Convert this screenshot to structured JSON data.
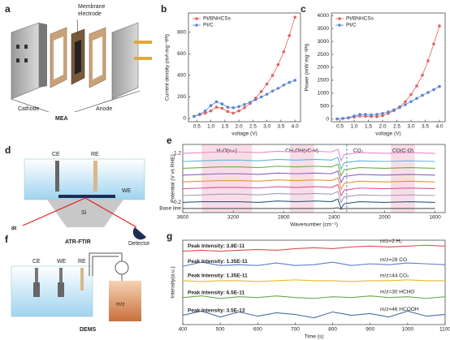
{
  "diagram_a": {
    "panel": "a",
    "membrane_label": [
      "Membrane",
      "electrode"
    ],
    "cathode": "Cathode",
    "anode": "Anode",
    "caption": "MEA"
  },
  "diagram_d": {
    "panel": "d",
    "ce": "CE",
    "re": "RE",
    "we": "WE",
    "si": "Si",
    "ir": "IR",
    "detector": "Detector",
    "caption": "ATR-FTIR"
  },
  "diagram_f": {
    "panel": "f",
    "ce": "CE",
    "we": "WE",
    "re": "RE",
    "mz": "m/z",
    "caption": "DEMS"
  },
  "chart_data": [
    {
      "type": "line",
      "panel": "b",
      "xlabel": "voltage (V)",
      "ylabel": "Current density (mA mg⁻¹Pt)",
      "x": [
        0.4,
        0.6,
        0.8,
        1.0,
        1.2,
        1.4,
        1.6,
        1.8,
        2.0,
        2.2,
        2.4,
        2.6,
        2.8,
        3.0,
        3.2,
        3.4,
        3.6,
        3.8,
        4.0
      ],
      "series": [
        {
          "name": "Pt/BNHCSs",
          "color": "#e2605e",
          "values": [
            20,
            35,
            50,
            70,
            105,
            95,
            65,
            50,
            70,
            100,
            140,
            190,
            250,
            320,
            400,
            500,
            620,
            770,
            940
          ]
        },
        {
          "name": "Pt/C",
          "color": "#5a84d4",
          "values": [
            20,
            40,
            70,
            120,
            155,
            135,
            105,
            100,
            110,
            130,
            150,
            175,
            200,
            225,
            255,
            280,
            310,
            335,
            355
          ]
        }
      ],
      "xlim": [
        0.2,
        4.2
      ],
      "xticks": [
        0.5,
        {
          "value": 1,
          "label": "1.0"
        },
        1.5,
        {
          "value": 2,
          "label": "2.0"
        },
        2.5,
        {
          "value": 3,
          "label": "3.0"
        },
        3.5,
        {
          "value": 4,
          "label": "4.0"
        }
      ],
      "ylim": [
        -30,
        980
      ],
      "yticks": [
        0,
        200,
        400,
        600,
        800
      ],
      "legend": "upper left",
      "markers": true
    },
    {
      "type": "line",
      "panel": "c",
      "xlabel": "voltage (V)",
      "ylabel": "Power (mW mg⁻¹Pt)",
      "x": [
        0.4,
        0.6,
        0.8,
        1.0,
        1.2,
        1.4,
        1.6,
        1.8,
        2.0,
        2.2,
        2.4,
        2.6,
        2.8,
        3.0,
        3.2,
        3.4,
        3.6,
        3.8,
        4.0
      ],
      "series": [
        {
          "name": "Pt/BNHCSs",
          "color": "#e2605e",
          "values": [
            10,
            25,
            50,
            80,
            120,
            110,
            100,
            95,
            140,
            220,
            330,
            480,
            680,
            950,
            1280,
            1700,
            2250,
            2900,
            3600
          ]
        },
        {
          "name": "Pt/C",
          "color": "#5a84d4",
          "values": [
            10,
            25,
            55,
            120,
            180,
            180,
            160,
            180,
            220,
            280,
            360,
            450,
            560,
            680,
            800,
            920,
            1030,
            1140,
            1260
          ]
        }
      ],
      "xlim": [
        0.2,
        4.2
      ],
      "xticks": [
        0.5,
        {
          "value": 1,
          "label": "1.0"
        },
        1.5,
        {
          "value": 2,
          "label": "2.0"
        },
        2.5,
        {
          "value": 3,
          "label": "3.0"
        },
        3.5,
        {
          "value": 4,
          "label": "4.0"
        }
      ],
      "ylim": [
        -100,
        4100
      ],
      "yticks": [
        0,
        500,
        1000,
        1500,
        2000,
        2500,
        3000,
        3500,
        4000
      ],
      "legend": "upper left",
      "markers": true
    },
    {
      "type": "line",
      "panel": "e",
      "xlabel": "Wavenumber (cm⁻¹)",
      "ylabel": "Potential (V vs RHE)",
      "x": [
        3600,
        3450,
        3300,
        3150,
        3000,
        2850,
        2700,
        2550,
        2420,
        2370,
        2345,
        2320,
        2200,
        2000,
        1800,
        1600
      ],
      "series": [
        {
          "name": "Base line",
          "color": "#555555",
          "values": [
            0.6,
            0.6,
            0.6,
            0.6,
            0.6,
            0.6,
            0.6,
            0.6,
            0.6,
            0.7,
            0.5,
            0.6,
            0.6,
            0.6,
            0.6,
            0.6
          ]
        },
        {
          "name": "0.2",
          "color": "#2e5e7a",
          "values": [
            1.5,
            1.6,
            1.6,
            1.6,
            1.5,
            1.7,
            1.6,
            1.7,
            1.6,
            2.0,
            0.6,
            1.3,
            1.6,
            1.5,
            1.6,
            1.5
          ]
        },
        {
          "color": "#a89bb5",
          "values": [
            2.5,
            2.6,
            2.7,
            2.7,
            2.6,
            2.8,
            2.7,
            2.8,
            2.7,
            3.1,
            1.5,
            2.3,
            2.6,
            2.5,
            2.6,
            2.5
          ]
        },
        {
          "color": "#d8569a",
          "values": [
            3.5,
            3.6,
            3.7,
            3.7,
            3.6,
            3.8,
            3.7,
            3.8,
            3.7,
            4.1,
            2.5,
            3.3,
            3.6,
            3.5,
            3.6,
            3.5
          ]
        },
        {
          "color": "#e8913a",
          "values": [
            4.5,
            4.6,
            4.7,
            4.7,
            4.6,
            4.8,
            4.7,
            4.8,
            4.7,
            5.1,
            3.4,
            4.3,
            4.6,
            4.5,
            4.6,
            4.5
          ]
        },
        {
          "color": "#8e5fc2",
          "values": [
            5.5,
            5.6,
            5.7,
            5.7,
            5.6,
            5.8,
            5.7,
            5.8,
            5.7,
            6.1,
            4.4,
            5.3,
            5.6,
            5.5,
            5.6,
            5.5
          ]
        },
        {
          "color": "#6cae45",
          "values": [
            6.5,
            6.6,
            6.7,
            6.7,
            6.6,
            6.8,
            6.7,
            6.8,
            6.7,
            7.1,
            5.4,
            6.3,
            6.6,
            6.5,
            6.6,
            6.5
          ]
        },
        {
          "color": "#5fb6d8",
          "values": [
            7.5,
            7.6,
            7.7,
            7.7,
            7.6,
            7.8,
            7.7,
            7.8,
            7.7,
            8.1,
            6.4,
            7.3,
            7.6,
            7.5,
            7.6,
            7.5
          ]
        },
        {
          "name": "1.2",
          "color": "#e78bd0",
          "values": [
            8.7,
            8.8,
            8.9,
            8.9,
            8.8,
            9.0,
            8.9,
            9.0,
            8.9,
            9.3,
            7.6,
            8.5,
            8.8,
            8.7,
            8.8,
            8.7
          ]
        }
      ],
      "bands": [
        {
          "label": "H₂O(νₒₕ)",
          "from": 3450,
          "to": 3050
        },
        {
          "label": "CH₃OH(νC-H)",
          "from": 2750,
          "to": 2560
        },
        {
          "label": "CO(C-O)",
          "from": 1950,
          "to": 1760
        }
      ],
      "band_color": "#f8dde7",
      "vline": {
        "label": "CO₂",
        "value": 2300
      },
      "xlim": [
        3600,
        1520
      ],
      "xticks": [
        3600,
        3200,
        2800,
        2400,
        2000,
        1600
      ],
      "ylim": [
        0,
        10
      ],
      "series_labels": "left"
    },
    {
      "type": "line",
      "panel": "g",
      "xlabel": "Time (s)",
      "ylabel": "Intensity(a.u.)",
      "x": [
        400,
        450,
        500,
        550,
        600,
        650,
        700,
        750,
        800,
        850,
        900,
        950,
        1000,
        1050,
        1100
      ],
      "series": [
        {
          "name": "m/z=2  H₂",
          "peak_label": "Peak Intensity: 3.8E-11",
          "color": "#d9534f",
          "values": [
            8.7,
            8.8,
            8.7,
            8.8,
            8.9,
            8.8,
            9.0,
            9.1,
            9.0,
            9.2,
            9.3,
            9.2,
            9.3,
            9.4,
            9.3
          ]
        },
        {
          "name": "m/z=28  CO",
          "peak_label": "Peak Intensity: 1.35E-11",
          "color": "#5b7fc7",
          "values": [
            6.9,
            7.4,
            7.0,
            7.1,
            7.0,
            7.3,
            7.0,
            7.1,
            7.4,
            7.0,
            7.2,
            7.1,
            7.3,
            7.2,
            7.1
          ]
        },
        {
          "name": "m/z=44  CO₂",
          "peak_label": "Peak Intensity: 1.35E-11",
          "color": "#e8b923",
          "values": [
            5.2,
            5.1,
            5.2,
            5.2,
            5.1,
            5.2,
            5.3,
            5.2,
            5.2,
            5.1,
            5.2,
            5.2,
            5.3,
            5.2,
            5.2
          ]
        },
        {
          "name": "m/z=30  HCHO",
          "peak_label": "Peak Intensity: 6.5E-11",
          "color": "#6aa84f",
          "values": [
            3.2,
            3.4,
            3.1,
            3.3,
            3.2,
            3.4,
            3.2,
            3.1,
            3.3,
            3.2,
            3.4,
            3.2,
            3.3,
            3.1,
            3.3
          ]
        },
        {
          "name": "m/z=46  HCOOH",
          "peak_label": "Peak Intensity: 3.5E-13",
          "color": "#4a6fa5",
          "values": [
            1.1,
            1.6,
            0.9,
            1.5,
            1.0,
            1.4,
            1.2,
            0.8,
            1.5,
            1.1,
            1.3,
            0.9,
            1.6,
            1.0,
            1.2
          ]
        }
      ],
      "xlim": [
        400,
        1100
      ],
      "xticks": [
        400,
        500,
        600,
        700,
        800,
        900,
        1000,
        1100
      ],
      "ylim": [
        0,
        10
      ],
      "series_labels": "inline"
    }
  ]
}
